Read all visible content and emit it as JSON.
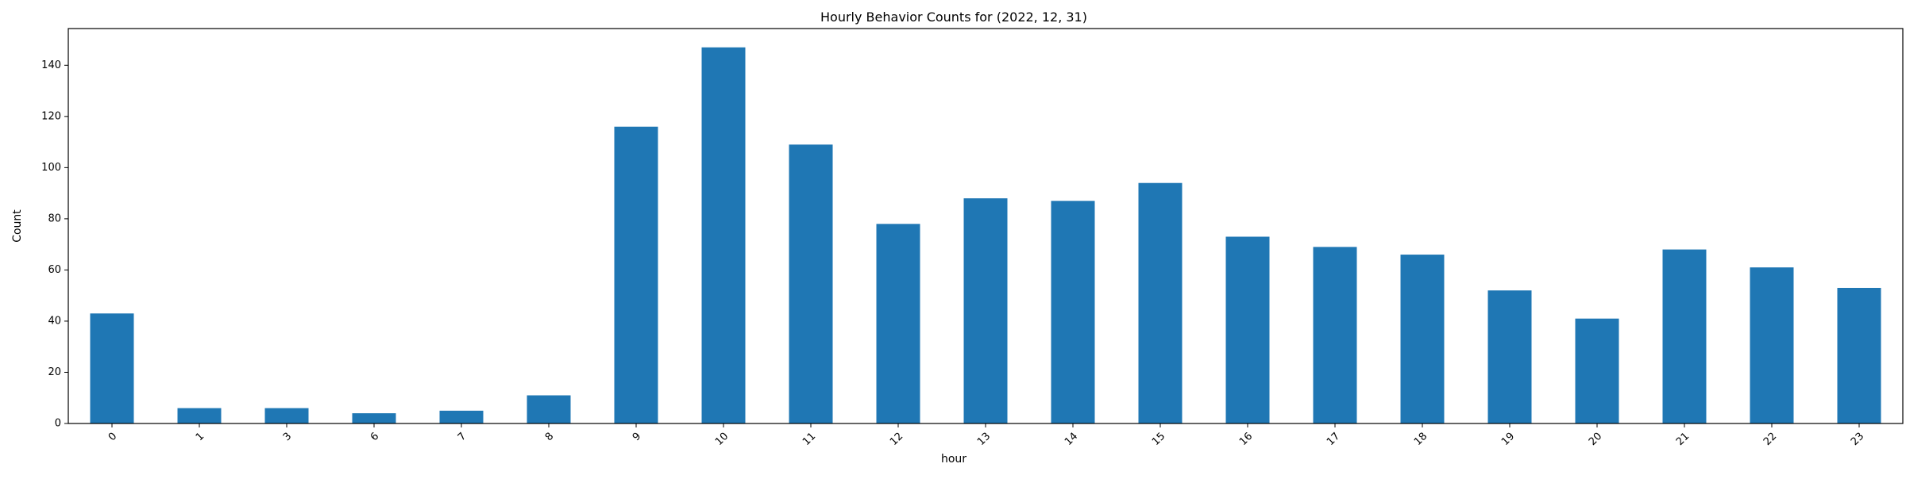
{
  "chart_data": {
    "type": "bar",
    "title": "Hourly Behavior Counts for (2022, 12, 31)",
    "xlabel": "hour",
    "ylabel": "Count",
    "categories": [
      "0",
      "1",
      "3",
      "6",
      "7",
      "8",
      "9",
      "10",
      "11",
      "12",
      "13",
      "14",
      "15",
      "16",
      "17",
      "18",
      "19",
      "20",
      "21",
      "22",
      "23"
    ],
    "values": [
      43,
      6,
      6,
      4,
      5,
      11,
      116,
      147,
      109,
      78,
      88,
      87,
      94,
      73,
      69,
      66,
      52,
      41,
      68,
      61,
      53
    ],
    "ylim": [
      0,
      154.35
    ],
    "yticks": [
      0,
      20,
      40,
      60,
      80,
      100,
      120,
      140
    ],
    "x_tick_rotation_deg": 45,
    "grid": false,
    "legend": "none",
    "bar_color": "#1f77b4"
  }
}
